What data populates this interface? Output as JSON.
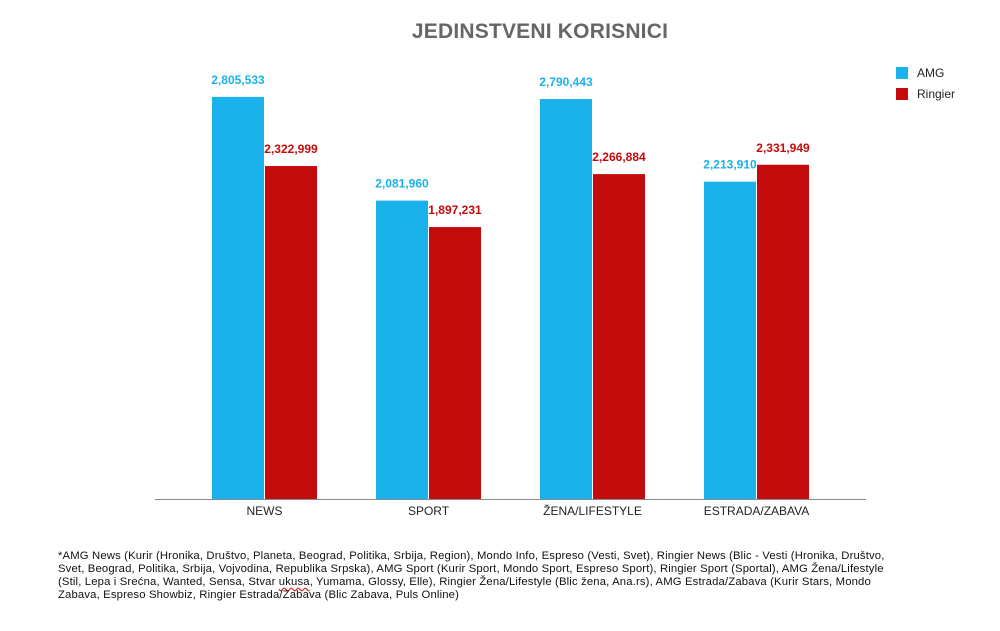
{
  "chart_data": {
    "type": "bar",
    "title": "JEDINSTVENI KORISNICI",
    "categories": [
      "NEWS",
      "SPORT",
      "ŽENA/LIFESTYLE",
      "ESTRADA/ZABAVA"
    ],
    "series": [
      {
        "name": "AMG",
        "color": "#1ab2ea",
        "values": [
          2805533,
          2081960,
          2790443,
          2213910
        ],
        "labels": [
          "2,805,533",
          "2,081,960",
          "2,790,443",
          "2,213,910"
        ]
      },
      {
        "name": "Ringier",
        "color": "#c40b0b",
        "values": [
          2322999,
          1897231,
          2266884,
          2331949
        ],
        "labels": [
          "2,322,999",
          "1,897,231",
          "2,266,884",
          "2,331,949"
        ]
      }
    ],
    "ylim": [
      0,
      3000000
    ],
    "grid": false,
    "legend_position": "top-right",
    "xlabel": "",
    "ylabel": ""
  },
  "footnote": {
    "before": "*AMG News (Kurir (Hronika, Društvo, Planeta, Beograd, Politika, Srbija, Region), Mondo Info, Espreso (Vesti, Svet), Ringier News (Blic - Vesti (Hronika, Društvo, Svet, Beograd, Politika, Srbija, Vojvodina, Republika Srpska), AMG Sport (Kurir Sport, Mondo Sport, Espreso Sport), Ringier Sport (Sportal), AMG Žena/Lifestyle (Stil, Lepa i Srećna, Wanted, Sensa, Stvar ",
    "flagged": "ukusa",
    "after": ", Yumama, Glossy, Elle), Ringier Žena/Lifestyle (Blic žena, Ana.rs), AMG Estrada/Zabava (Kurir Stars, Mondo Zabava, Espreso Showbiz, Ringier Estrada/Zabava (Blic Zabava, Puls Online)"
  }
}
